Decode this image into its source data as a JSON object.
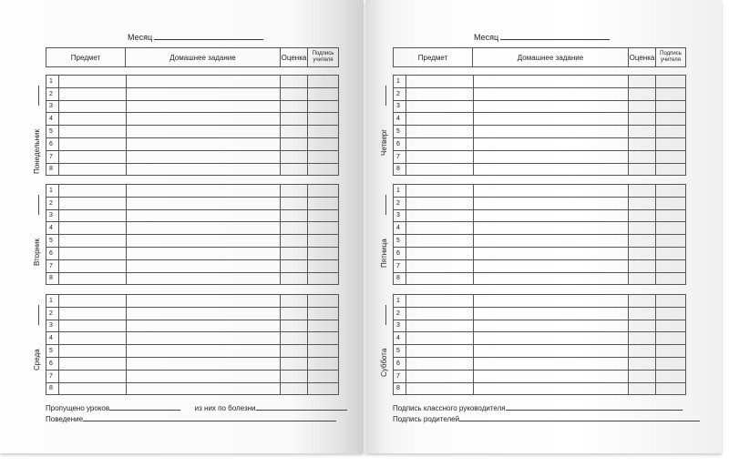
{
  "header": {
    "month_label": "Месяц",
    "columns": [
      "Предмет",
      "Домашнее задание",
      "Оценка",
      "Подпись учителя"
    ]
  },
  "row_numbers": [
    "1",
    "2",
    "3",
    "4",
    "5",
    "6",
    "7",
    "8"
  ],
  "left_page": {
    "days": [
      "Понедельник",
      "Вторник",
      "Среда"
    ],
    "footer": {
      "missed": "Пропущено уроков",
      "sick": "из них по болезни",
      "behavior": "Поведение"
    }
  },
  "right_page": {
    "days": [
      "Четверг",
      "Пятница",
      "Суббота"
    ],
    "footer": {
      "teacher_sign": "Подпись классного руководителя",
      "parents_sign": "Подпись родителей"
    }
  }
}
